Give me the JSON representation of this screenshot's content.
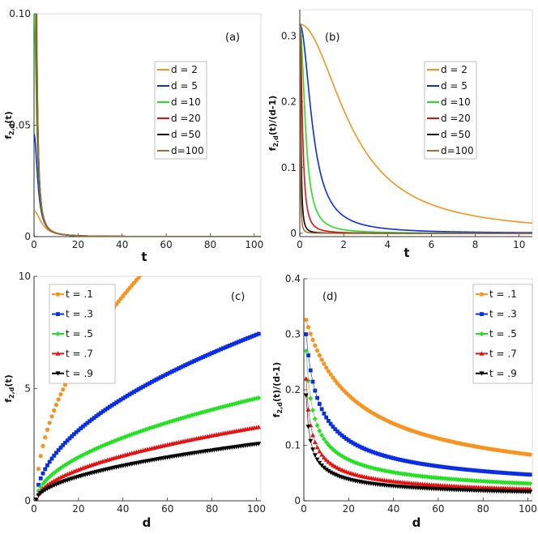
{
  "chart_data": [
    {
      "panel": "(a)",
      "type": "line",
      "xlabel": "t",
      "ylabel_main": "f",
      "ylabel_sub": "2,d",
      "ylabel_tail": "(t)",
      "xlim": [
        0,
        103
      ],
      "ylim": [
        0,
        0.1
      ],
      "xticks": [
        0,
        20,
        40,
        60,
        80,
        100
      ],
      "xtick_labels": [
        "0",
        "20",
        "40",
        "60",
        "80",
        "100"
      ],
      "yticks": [
        0,
        0.05,
        0.1
      ],
      "ytick_labels": [
        "0",
        "0.05",
        "0.10"
      ],
      "series": [
        {
          "name": "d = 2",
          "color": "#f7931e",
          "d": 2
        },
        {
          "name": "d = 5",
          "color": "#0a2ee6",
          "d": 5
        },
        {
          "name": "d =10",
          "color": "#22e222",
          "d": 10
        },
        {
          "name": "d =20",
          "color": "#e61010",
          "d": 20
        },
        {
          "name": "d =50",
          "color": "#000000",
          "d": 50
        },
        {
          "name": "d=100",
          "color": "#a0703a",
          "d": 100
        }
      ]
    },
    {
      "panel": "(b)",
      "type": "line",
      "xlabel": "t",
      "ylabel_main": "f",
      "ylabel_sub": "2,d",
      "ylabel_tail": "(t)/(d-1)",
      "xlim": [
        0,
        10.6
      ],
      "ylim": [
        -0.005,
        0.34
      ],
      "xticks": [
        0,
        2,
        4,
        6,
        8,
        10
      ],
      "xtick_labels": [
        "0",
        "2",
        "4",
        "6",
        "8",
        "10"
      ],
      "yticks": [
        0,
        0.1,
        0.2,
        0.3
      ],
      "ytick_labels": [
        "0",
        "0.1",
        "0.2",
        "0.3"
      ],
      "series": [
        {
          "name": "d = 2",
          "color": "#f7931e",
          "d": 2
        },
        {
          "name": "d = 5",
          "color": "#0a2ee6",
          "d": 5
        },
        {
          "name": "d =10",
          "color": "#22e222",
          "d": 10
        },
        {
          "name": "d =20",
          "color": "#e61010",
          "d": 20
        },
        {
          "name": "d =50",
          "color": "#000000",
          "d": 50
        },
        {
          "name": "d=100",
          "color": "#a0703a",
          "d": 100
        }
      ]
    },
    {
      "panel": "(c)",
      "type": "scatter",
      "xlabel": "d",
      "ylabel_main": "f",
      "ylabel_sub": "2,d",
      "ylabel_tail": "(t)",
      "xlim": [
        0,
        102
      ],
      "ylim": [
        0,
        10
      ],
      "xticks": [
        0,
        20,
        40,
        60,
        80,
        100
      ],
      "xtick_labels": [
        "0",
        "20",
        "40",
        "60",
        "80",
        "100"
      ],
      "yticks": [
        0,
        5,
        10
      ],
      "ytick_labels": [
        "0",
        "5",
        "10"
      ],
      "series": [
        {
          "name": "t = .1",
          "color": "#f7931e",
          "marker": "circle",
          "t": 0.1
        },
        {
          "name": "t = .3",
          "color": "#0a2ee6",
          "marker": "square",
          "t": 0.3
        },
        {
          "name": "t = .5",
          "color": "#22e222",
          "marker": "diamond",
          "t": 0.5
        },
        {
          "name": "t = .7",
          "color": "#e61010",
          "marker": "triangle-up",
          "t": 0.7
        },
        {
          "name": "t = .9",
          "color": "#000000",
          "marker": "triangle-down",
          "t": 0.9
        }
      ]
    },
    {
      "panel": "(d)",
      "type": "scatter",
      "xlabel": "d",
      "ylabel_main": "f",
      "ylabel_sub": "2,d",
      "ylabel_tail": "(t)/(d-1)",
      "xlim": [
        0,
        102
      ],
      "ylim": [
        0,
        0.4
      ],
      "xticks": [
        0,
        20,
        40,
        60,
        80,
        100
      ],
      "xtick_labels": [
        "0",
        "20",
        "40",
        "60",
        "80",
        "100"
      ],
      "yticks": [
        0,
        0.1,
        0.2,
        0.3,
        0.4
      ],
      "ytick_labels": [
        "0",
        "0.1",
        "0.2",
        "0.3",
        "0.4"
      ],
      "series": [
        {
          "name": "t = .1",
          "color": "#f7931e",
          "marker": "circle",
          "t": 0.1
        },
        {
          "name": "t = .3",
          "color": "#0a2ee6",
          "marker": "square",
          "t": 0.3
        },
        {
          "name": "t = .5",
          "color": "#22e222",
          "marker": "diamond",
          "t": 0.5
        },
        {
          "name": "t = .7",
          "color": "#e61010",
          "marker": "triangle-up",
          "t": 0.7
        },
        {
          "name": "t = .9",
          "color": "#000000",
          "marker": "triangle-down",
          "t": 0.9
        }
      ]
    }
  ]
}
